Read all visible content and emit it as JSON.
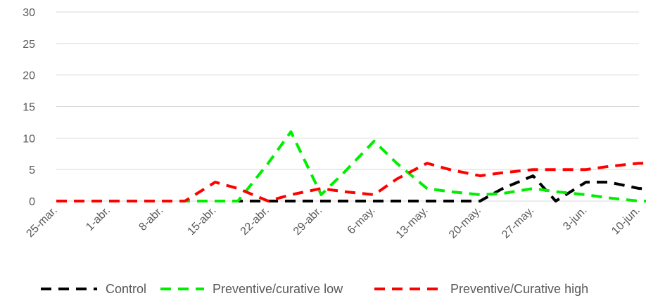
{
  "chart_data": {
    "type": "line",
    "title": "",
    "xlabel": "",
    "ylabel": "",
    "x_ticks": [
      "25-mar.",
      "1-abr.",
      "8-abr.",
      "15-abr.",
      "22-abr.",
      "29-abr.",
      "6-may.",
      "13-may.",
      "20-may.",
      "27-may.",
      "3-jun.",
      "10-jun."
    ],
    "y_ticks": [
      0,
      5,
      10,
      15,
      20,
      25,
      30
    ],
    "ylim": [
      0,
      30
    ],
    "x": [
      "25-mar.",
      "1-abr.",
      "8-abr.",
      "11-abr.",
      "15-abr.",
      "18-abr.",
      "22-abr.",
      "25-abr.",
      "29-abr.",
      "2-may.",
      "6-may.",
      "9-may.",
      "13-may.",
      "16-may.",
      "20-may.",
      "23-may.",
      "27-may.",
      "30-may.",
      "3-jun.",
      "6-jun.",
      "10-jun.",
      "11-jun."
    ],
    "series": [
      {
        "name": "Control",
        "color": "#000000",
        "values": [
          0,
          0,
          0,
          0,
          0,
          0,
          0,
          0,
          0,
          0,
          0,
          0,
          0,
          0,
          0,
          2,
          4,
          0,
          3,
          3,
          2,
          2
        ]
      },
      {
        "name": "Preventive/curative low",
        "color": "#00ee00",
        "values": [
          0,
          0,
          0,
          0,
          0,
          0,
          6,
          11,
          1,
          4.5,
          9.5,
          6,
          2,
          1.5,
          1,
          1.2,
          2,
          1.5,
          1,
          0.5,
          0,
          0
        ]
      },
      {
        "name": "Preventive/Curative high",
        "color": "#ff0000",
        "values": [
          0,
          0,
          0,
          0,
          3,
          2,
          0,
          1,
          2,
          1.5,
          1,
          3.5,
          6,
          5,
          4,
          4.5,
          5,
          5,
          5,
          5.5,
          6,
          6
        ]
      }
    ],
    "grid": true,
    "legend_position": "bottom"
  }
}
